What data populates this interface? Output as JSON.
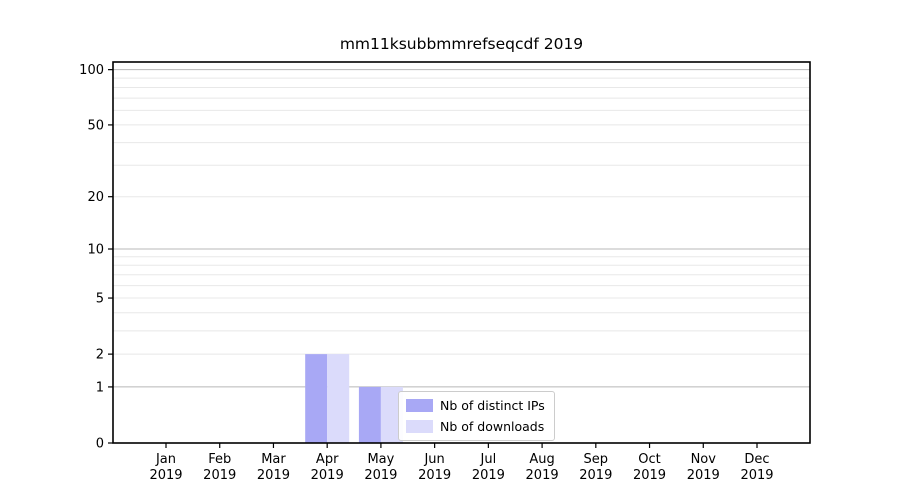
{
  "chart_data": {
    "type": "bar",
    "title": "mm11ksubbmmrefseqcdf 2019",
    "categories": [
      "Jan",
      "Feb",
      "Mar",
      "Apr",
      "May",
      "Jun",
      "Jul",
      "Aug",
      "Sep",
      "Oct",
      "Nov",
      "Dec"
    ],
    "xtick_year": "2019",
    "series": [
      {
        "name": "Nb of distinct IPs",
        "color": "#a8a8f5",
        "values": [
          0,
          0,
          0,
          2,
          1,
          0,
          0,
          0,
          0,
          0,
          0,
          0
        ]
      },
      {
        "name": "Nb of downloads",
        "color": "#dbdbfb",
        "values": [
          0,
          0,
          0,
          2,
          1,
          0,
          0,
          0,
          0,
          0,
          0,
          0
        ]
      }
    ],
    "yscale": "log1p",
    "ylim": [
      0,
      110
    ],
    "ytick_values": [
      0,
      1,
      2,
      5,
      10,
      20,
      50,
      100
    ],
    "grid_major_values": [
      1,
      10,
      100
    ],
    "grid_minor_values": [
      2,
      3,
      4,
      5,
      6,
      7,
      8,
      9,
      20,
      30,
      40,
      50,
      60,
      70,
      80,
      90
    ],
    "grid": "horizontal",
    "legend": {
      "entries": [
        "Nb of distinct IPs",
        "Nb of downloads"
      ],
      "position": "lower-center-inside"
    },
    "colors": {
      "grid_major": "#b8b8b8",
      "grid_minor": "#e8e8e8",
      "axis": "#000000",
      "text": "#000000"
    }
  }
}
